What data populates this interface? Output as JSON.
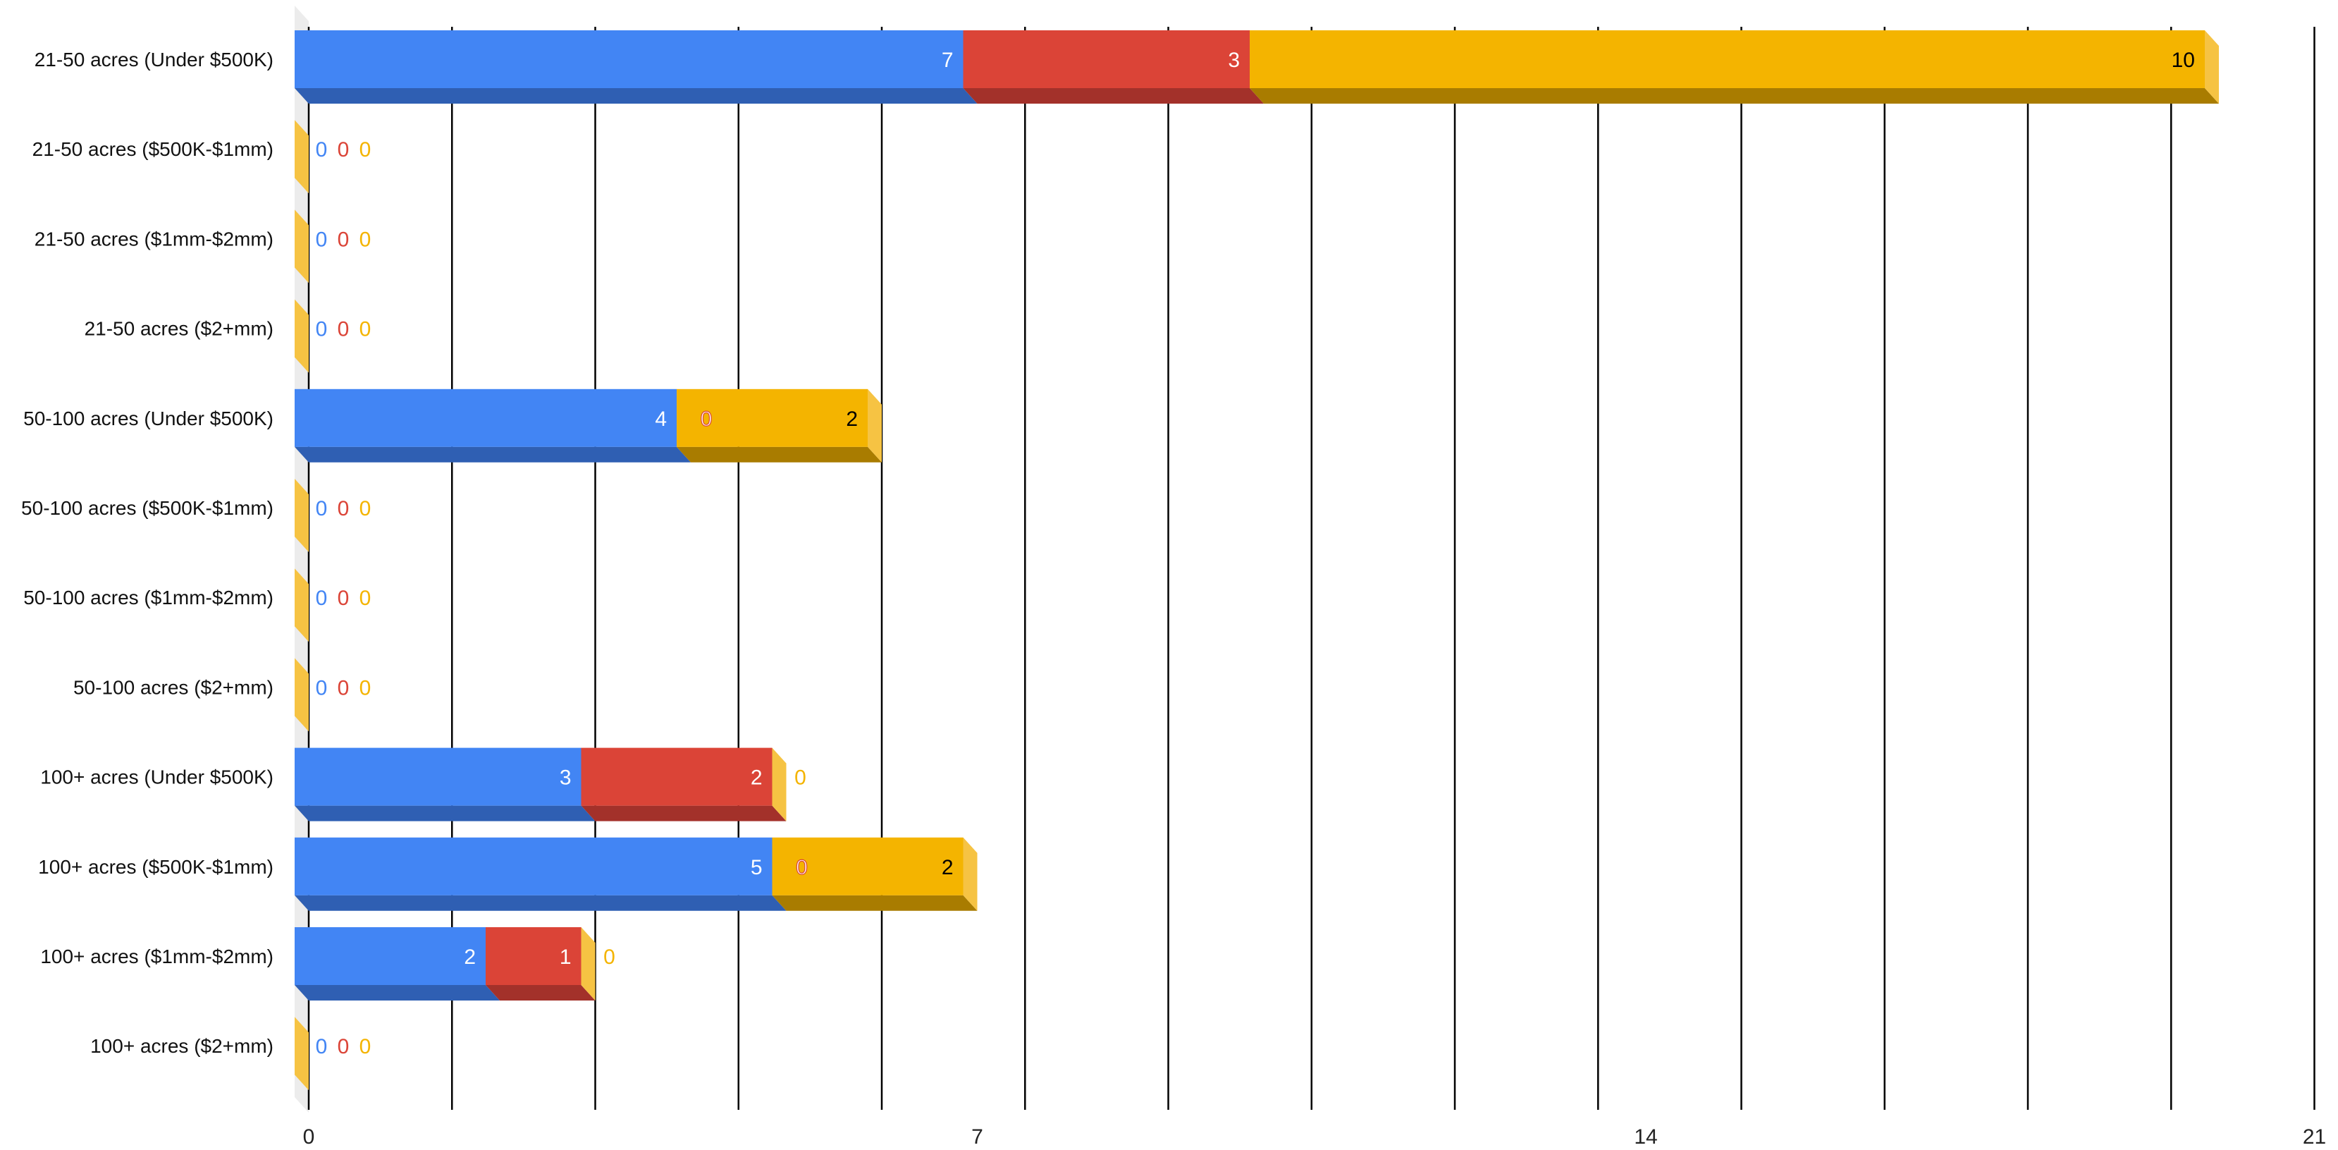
{
  "chart_data": {
    "type": "bar",
    "orientation": "horizontal",
    "stacked": true,
    "style": "3d",
    "title": "",
    "xlabel": "",
    "ylabel": "",
    "xlim": [
      0,
      21
    ],
    "x_ticks": [
      0,
      7,
      14,
      21
    ],
    "grid": true,
    "legend": "none",
    "categories": [
      "21-50 acres (Under $500K)",
      "21-50 acres ($500K-$1mm)",
      "21-50 acres ($1mm-$2mm)",
      "21-50 acres ($2+mm)",
      "50-100 acres (Under $500K)",
      "50-100 acres ($500K-$1mm)",
      "50-100 acres ($1mm-$2mm)",
      "50-100 acres ($2+mm)",
      "100+ acres (Under $500K)",
      "100+ acres ($500K-$1mm)",
      "100+ acres ($1mm-$2mm)",
      "100+ acres ($2+mm)"
    ],
    "series": [
      {
        "color": "#4285f4",
        "side_color": "#2f5fb3",
        "label_color": "#ffffff",
        "values": [
          7,
          0,
          0,
          0,
          4,
          0,
          0,
          0,
          3,
          5,
          2,
          0
        ]
      },
      {
        "color": "#db4437",
        "side_color": "#a3312a",
        "label_color": "#ffffff",
        "values": [
          3,
          0,
          0,
          0,
          0,
          0,
          0,
          0,
          2,
          0,
          1,
          0
        ]
      },
      {
        "color": "#f4b400",
        "side_color": "#a97c00",
        "label_color": "#000000",
        "values": [
          10,
          0,
          0,
          0,
          2,
          0,
          0,
          0,
          0,
          2,
          0,
          0
        ]
      }
    ]
  }
}
